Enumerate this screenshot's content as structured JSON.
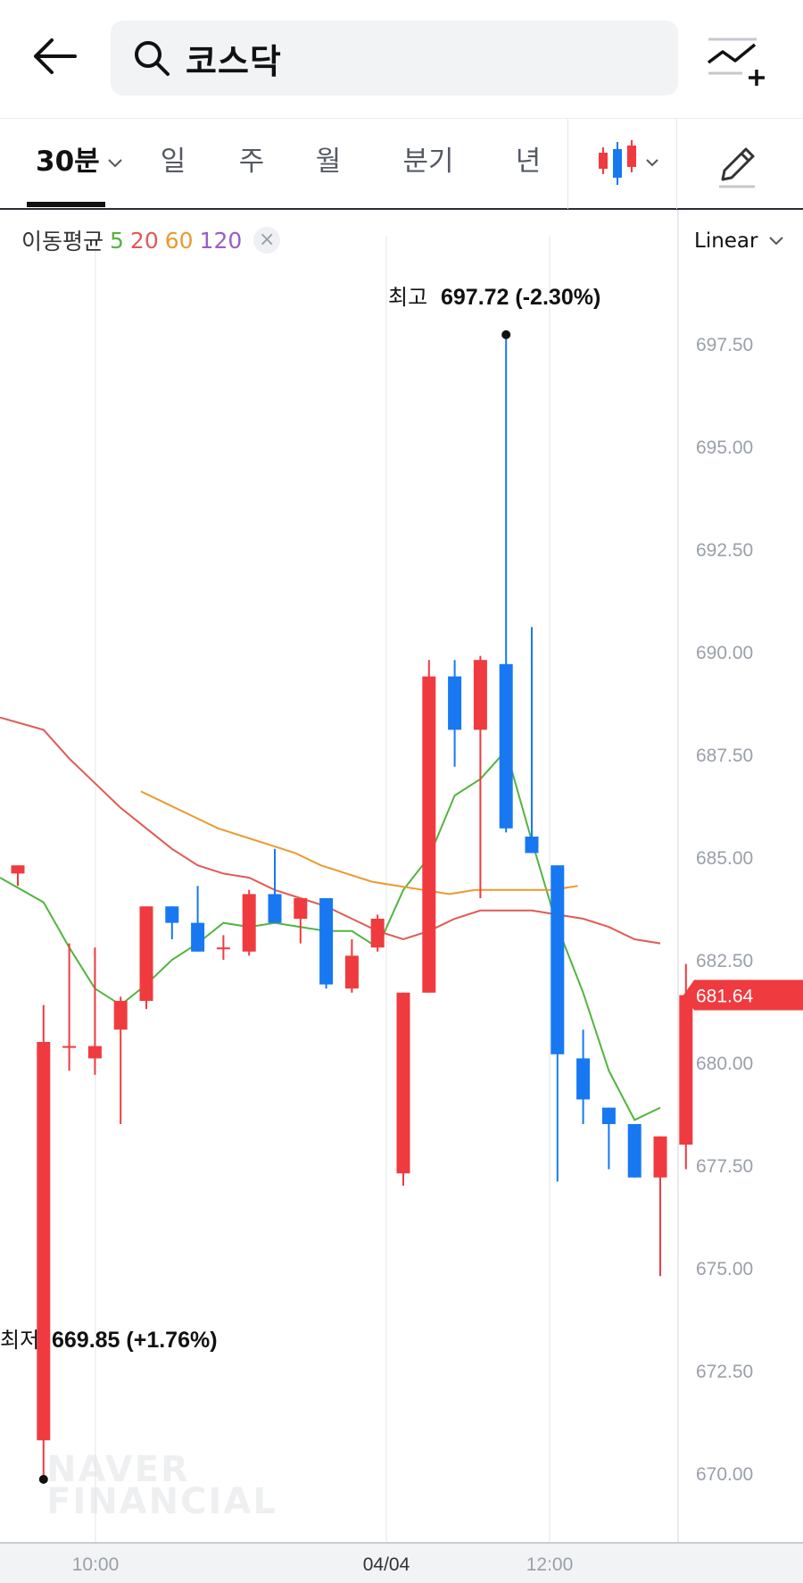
{
  "header": {
    "search_text": "코스닥",
    "icons": {
      "back": "arrow-left-icon",
      "search": "search-icon",
      "compare": "chart-add-icon"
    }
  },
  "tabs": [
    {
      "label": "30분",
      "active": true,
      "has_dropdown": true
    },
    {
      "label": "일"
    },
    {
      "label": "주"
    },
    {
      "label": "월"
    },
    {
      "label": "분기"
    },
    {
      "label": "년"
    }
  ],
  "toolbar": {
    "chart_type_icon": "candlestick-icon",
    "edit_icon": "pencil-icon"
  },
  "legend": {
    "title": "이동평균",
    "periods": [
      {
        "label": "5",
        "color": "#52b43e"
      },
      {
        "label": "20",
        "color": "#e05a55"
      },
      {
        "label": "60",
        "color": "#eb9a2e"
      },
      {
        "label": "120",
        "color": "#9b5cc7"
      }
    ],
    "close_symbol": "×"
  },
  "scale": {
    "label": "Linear"
  },
  "colors": {
    "up": "#ef3b3f",
    "down": "#1778f2",
    "grid": "#eceef1"
  },
  "watermark": [
    "NAVER",
    "FINANCIAL"
  ],
  "chart_data": {
    "type": "candlestick",
    "interval": "30분",
    "ylim": [
      668.3,
      699.5
    ],
    "y_ticks": [
      "697.50",
      "695.00",
      "692.50",
      "690.00",
      "687.50",
      "685.00",
      "682.50",
      "680.00",
      "677.50",
      "675.00",
      "672.50",
      "670.00"
    ],
    "x_ticks": [
      "10:00",
      "04/04",
      "12:00"
    ],
    "last_price_label": "681.64",
    "high_annotation": {
      "prefix": "최고",
      "label": "697.72 (-2.30%)",
      "value": 697.72
    },
    "low_annotation": {
      "prefix": "최저",
      "label": "669.85 (+1.76%)",
      "value": 669.85
    },
    "candles": [
      {
        "o": 684.6,
        "h": 684.8,
        "l": 684.3,
        "c": 684.8
      },
      {
        "o": 670.8,
        "h": 681.4,
        "l": 669.85,
        "c": 680.5
      },
      {
        "o": 680.4,
        "h": 682.9,
        "l": 679.8,
        "c": 680.4
      },
      {
        "o": 680.1,
        "h": 682.8,
        "l": 679.7,
        "c": 680.4
      },
      {
        "o": 680.8,
        "h": 681.6,
        "l": 678.5,
        "c": 681.5
      },
      {
        "o": 681.5,
        "h": 683.8,
        "l": 681.3,
        "c": 683.8
      },
      {
        "o": 683.8,
        "h": 683.8,
        "l": 683.0,
        "c": 683.4
      },
      {
        "o": 683.4,
        "h": 684.3,
        "l": 682.7,
        "c": 682.7
      },
      {
        "o": 682.8,
        "h": 683.1,
        "l": 682.5,
        "c": 682.8
      },
      {
        "o": 682.7,
        "h": 684.2,
        "l": 682.6,
        "c": 684.1
      },
      {
        "o": 684.1,
        "h": 685.2,
        "l": 683.4,
        "c": 683.4
      },
      {
        "o": 683.5,
        "h": 684.0,
        "l": 682.9,
        "c": 684.0
      },
      {
        "o": 684.0,
        "h": 684.0,
        "l": 681.8,
        "c": 681.9
      },
      {
        "o": 681.8,
        "h": 683.0,
        "l": 681.7,
        "c": 682.6
      },
      {
        "o": 682.8,
        "h": 683.6,
        "l": 682.7,
        "c": 683.5
      },
      {
        "o": 677.3,
        "h": 681.7,
        "l": 677.0,
        "c": 681.7
      },
      {
        "o": 681.7,
        "h": 689.8,
        "l": 681.7,
        "c": 689.4
      },
      {
        "o": 689.4,
        "h": 689.8,
        "l": 687.2,
        "c": 688.1
      },
      {
        "o": 688.1,
        "h": 689.9,
        "l": 684.0,
        "c": 689.8
      },
      {
        "o": 689.7,
        "h": 697.72,
        "l": 685.6,
        "c": 685.7
      },
      {
        "o": 685.5,
        "h": 690.6,
        "l": 685.1,
        "c": 685.1
      },
      {
        "o": 684.8,
        "h": 684.8,
        "l": 677.1,
        "c": 680.2
      },
      {
        "o": 680.1,
        "h": 680.8,
        "l": 678.5,
        "c": 679.1
      },
      {
        "o": 678.9,
        "h": 678.9,
        "l": 677.4,
        "c": 678.5
      },
      {
        "o": 678.5,
        "h": 678.5,
        "l": 677.2,
        "c": 677.2
      },
      {
        "o": 677.2,
        "h": 678.2,
        "l": 674.8,
        "c": 678.2
      },
      {
        "o": 678.0,
        "h": 682.4,
        "l": 677.4,
        "c": 681.64
      }
    ],
    "moving_averages": [
      {
        "period": "5",
        "points": [
          684.5,
          683.9,
          682.8,
          681.8,
          681.4,
          681.9,
          682.5,
          682.9,
          683.4,
          683.3,
          683.4,
          683.3,
          683.2,
          683.2,
          682.8,
          684.2,
          685.0,
          686.5,
          686.9,
          687.6,
          685.4,
          683.3,
          681.7,
          679.8,
          678.6,
          678.9
        ]
      },
      {
        "period": "20",
        "points": [
          688.4,
          688.1,
          687.4,
          686.8,
          686.2,
          685.7,
          685.2,
          684.8,
          684.6,
          684.5,
          684.2,
          684.0,
          683.8,
          683.5,
          683.2,
          683.0,
          683.2,
          683.5,
          683.7,
          683.7,
          683.7,
          683.6,
          683.5,
          683.3,
          683.0,
          682.9
        ]
      },
      {
        "period": "60",
        "points": [
          686.6,
          686.3,
          686.0,
          685.7,
          685.5,
          685.3,
          685.1,
          684.8,
          684.6,
          684.4,
          684.3,
          684.2,
          684.1,
          684.2,
          684.2,
          684.2,
          684.2,
          684.3
        ]
      }
    ]
  }
}
